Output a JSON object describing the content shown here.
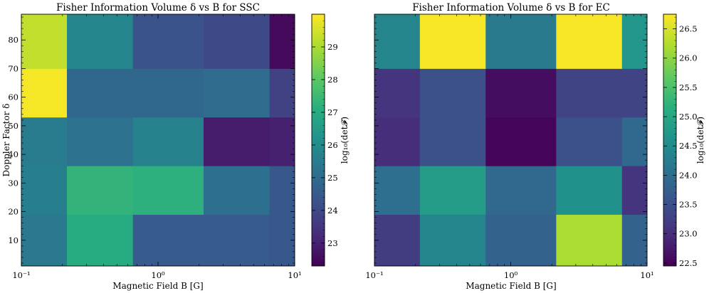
{
  "chart_data": [
    {
      "type": "heatmap",
      "title": "Fisher Information Volume δ vs B for SSC",
      "xlabel": "Magnetic Field B [G]",
      "ylabel": "Doppler Factor δ",
      "xscale": "log",
      "xlim": [
        0.1,
        10
      ],
      "ylim": [
        1,
        89
      ],
      "x_edges": [
        0.1,
        0.2154,
        0.6546,
        2.154,
        6.546,
        10
      ],
      "y_edges": [
        1,
        19,
        36,
        53,
        70,
        89
      ],
      "x_tick_labels": [
        "10⁻¹",
        "10⁰",
        "10¹"
      ],
      "y_tick_labels": [
        "10",
        "20",
        "30",
        "40",
        "50",
        "60",
        "70",
        "80"
      ],
      "y_ticks": [
        10,
        20,
        30,
        40,
        50,
        60,
        70,
        80
      ],
      "values": [
        [
          25.4,
          27.0,
          24.5,
          24.5,
          24.4
        ],
        [
          25.6,
          27.3,
          27.2,
          25.1,
          24.4
        ],
        [
          25.5,
          25.2,
          25.7,
          22.9,
          23.0
        ],
        [
          29.9,
          24.9,
          24.9,
          25.0,
          23.8
        ],
        [
          29.3,
          25.8,
          24.3,
          24.0,
          22.5
        ]
      ],
      "colorbar": {
        "label": "log₁₀(det𝓕)",
        "vmin": 22.3,
        "vmax": 30.0,
        "ticks": [
          23,
          24,
          25,
          26,
          27,
          28,
          29
        ],
        "tick_labels": [
          "23",
          "24",
          "25",
          "26",
          "27",
          "28",
          "29"
        ]
      }
    },
    {
      "type": "heatmap",
      "title": "Fisher Information Volume δ vs B for EC",
      "xlabel": "Magnetic Field B [G]",
      "ylabel": "",
      "xscale": "log",
      "xlim": [
        0.1,
        10
      ],
      "ylim": [
        1,
        89
      ],
      "x_edges": [
        0.1,
        0.2154,
        0.6546,
        2.154,
        6.546,
        10
      ],
      "y_edges": [
        1,
        19,
        36,
        53,
        70,
        89
      ],
      "x_tick_labels": [
        "10⁻¹",
        "10⁰",
        "10¹"
      ],
      "values": [
        [
          23.2,
          24.4,
          23.8,
          26.2,
          23.8
        ],
        [
          24.0,
          24.8,
          23.9,
          24.6,
          23.1
        ],
        [
          23.0,
          23.5,
          22.5,
          23.5,
          23.9
        ],
        [
          23.1,
          23.5,
          22.6,
          23.3,
          23.3
        ],
        [
          24.4,
          26.7,
          24.2,
          26.7,
          24.7
        ]
      ],
      "colorbar": {
        "label": "log₁₀(det𝓕)",
        "vmin": 22.45,
        "vmax": 26.75,
        "ticks": [
          22.5,
          23.0,
          23.5,
          24.0,
          24.5,
          25.0,
          25.5,
          26.0,
          26.5
        ],
        "tick_labels": [
          "22.5",
          "23.0",
          "23.5",
          "24.0",
          "24.5",
          "25.0",
          "25.5",
          "26.0",
          "26.5"
        ]
      }
    }
  ]
}
